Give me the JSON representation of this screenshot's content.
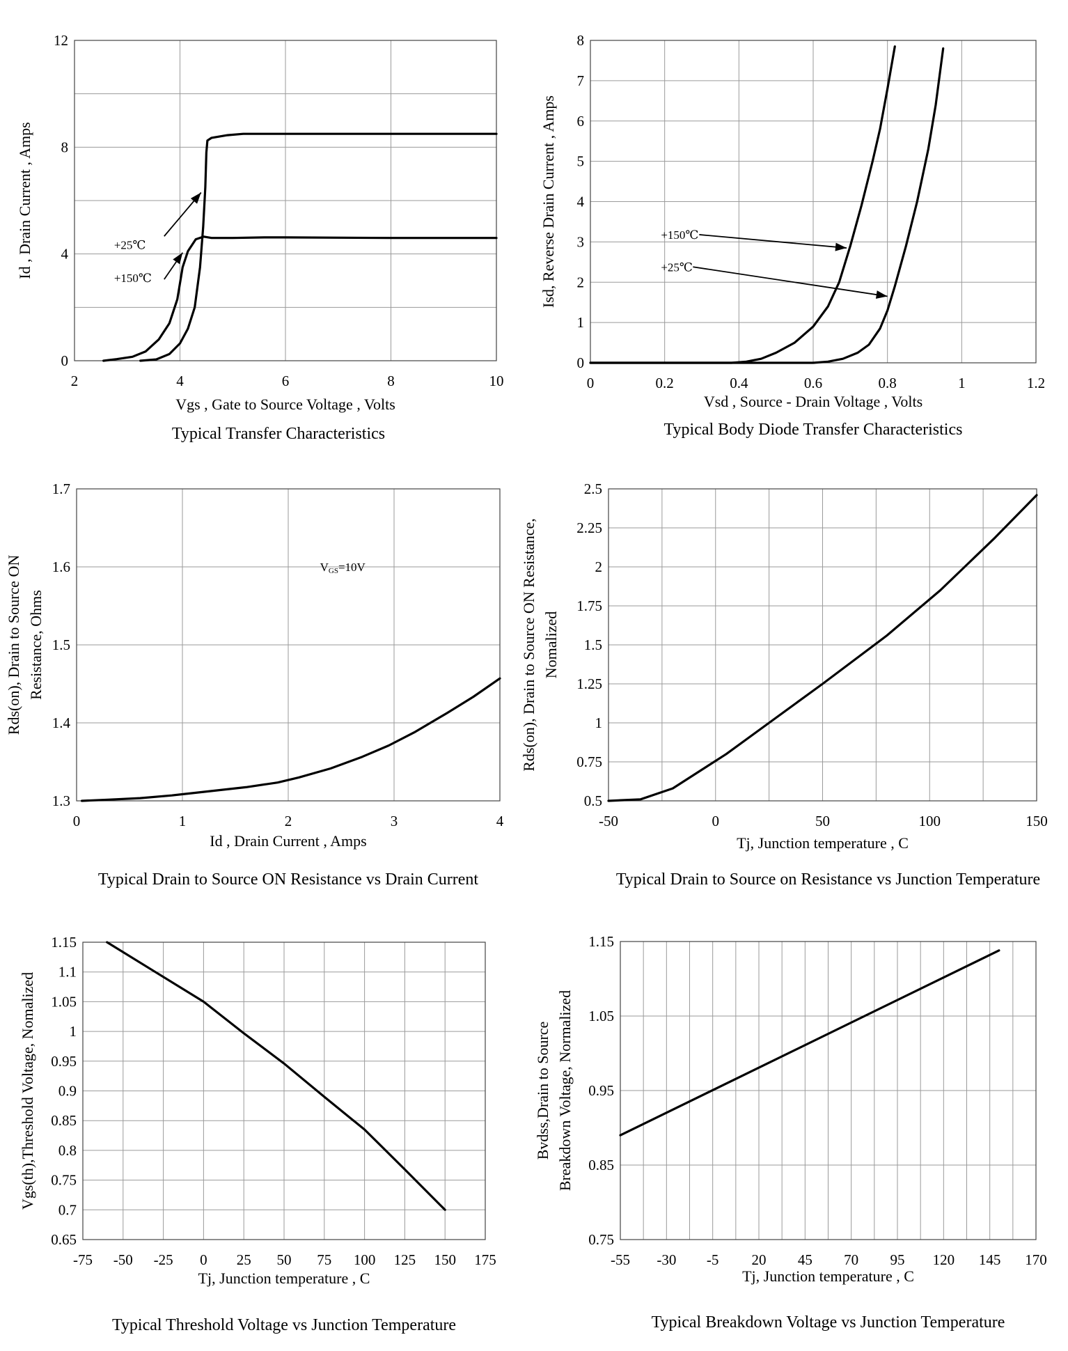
{
  "chart_data": [
    {
      "id": "transfer",
      "type": "line",
      "title": "Typical Transfer Characteristics",
      "xlabel": "Vgs , Gate to Source Voltage , Volts",
      "ylabel": "Id , Drain Current , Amps",
      "xlim": [
        2,
        10
      ],
      "ylim": [
        0,
        12
      ],
      "xticks": [
        2,
        4,
        6,
        8,
        10
      ],
      "xtick_labels": [
        "2",
        "4",
        "6",
        "8",
        "10"
      ],
      "yticks": [
        0,
        4,
        8,
        12
      ],
      "ytick_labels": [
        "0",
        "4",
        "8",
        "12"
      ],
      "xgrid": [
        2,
        4,
        6,
        8,
        10
      ],
      "ygrid": [
        0,
        2,
        4,
        6,
        8,
        10,
        12
      ],
      "series": [
        {
          "name": "+25℃",
          "points": [
            [
              3.25,
              0
            ],
            [
              3.55,
              0.05
            ],
            [
              3.8,
              0.25
            ],
            [
              4.0,
              0.65
            ],
            [
              4.15,
              1.2
            ],
            [
              4.28,
              2.0
            ],
            [
              4.38,
              3.5
            ],
            [
              4.44,
              5.0
            ],
            [
              4.48,
              6.5
            ],
            [
              4.5,
              7.8
            ],
            [
              4.52,
              8.25
            ],
            [
              4.6,
              8.35
            ],
            [
              4.9,
              8.45
            ],
            [
              5.2,
              8.5
            ],
            [
              5.6,
              8.5
            ],
            [
              6,
              8.5
            ],
            [
              10,
              8.5
            ]
          ]
        },
        {
          "name": "+150℃",
          "points": [
            [
              2.55,
              0
            ],
            [
              2.8,
              0.06
            ],
            [
              3.1,
              0.15
            ],
            [
              3.35,
              0.35
            ],
            [
              3.6,
              0.8
            ],
            [
              3.8,
              1.4
            ],
            [
              3.95,
              2.3
            ],
            [
              4.05,
              3.5
            ],
            [
              4.15,
              4.1
            ],
            [
              4.3,
              4.55
            ],
            [
              4.45,
              4.65
            ],
            [
              4.6,
              4.6
            ],
            [
              5.0,
              4.6
            ],
            [
              5.6,
              4.62
            ],
            [
              6,
              4.62
            ],
            [
              8,
              4.6
            ],
            [
              10,
              4.6
            ]
          ]
        }
      ],
      "annotations": [
        {
          "text": "+25℃",
          "at": [
            2.75,
            4.35
          ],
          "arrow_to": [
            4.4,
            6.3
          ]
        },
        {
          "text": "+150℃",
          "at": [
            2.75,
            3.1
          ],
          "arrow_to": [
            4.05,
            4.05
          ]
        }
      ]
    },
    {
      "id": "body-diode",
      "type": "line",
      "title": "Typical Body Diode Transfer Characteristics",
      "xlabel": "Vsd , Source - Drain Voltage , Volts",
      "ylabel": "Isd, Reverse Drain Current , Amps",
      "xlim": [
        0,
        1.2
      ],
      "ylim": [
        0,
        8
      ],
      "xticks": [
        0,
        0.2,
        0.4,
        0.6,
        0.8,
        1,
        1.2
      ],
      "xtick_labels": [
        "0",
        "0.2",
        "0.4",
        "0.6",
        "0.8",
        "1",
        "1.2"
      ],
      "yticks": [
        0,
        1,
        2,
        3,
        4,
        5,
        6,
        7,
        8
      ],
      "ytick_labels": [
        "0",
        "1",
        "2",
        "3",
        "4",
        "5",
        "6",
        "7",
        "8"
      ],
      "xgrid": [
        0,
        0.2,
        0.4,
        0.6,
        0.8,
        1,
        1.2
      ],
      "ygrid": [
        0,
        1,
        2,
        3,
        4,
        5,
        6,
        7,
        8
      ],
      "series": [
        {
          "name": "+150℃",
          "points": [
            [
              0,
              0
            ],
            [
              0.38,
              0
            ],
            [
              0.42,
              0.03
            ],
            [
              0.46,
              0.1
            ],
            [
              0.5,
              0.25
            ],
            [
              0.55,
              0.5
            ],
            [
              0.6,
              0.9
            ],
            [
              0.64,
              1.4
            ],
            [
              0.67,
              2.0
            ],
            [
              0.7,
              2.9
            ],
            [
              0.73,
              3.9
            ],
            [
              0.76,
              5.0
            ],
            [
              0.78,
              5.8
            ],
            [
              0.8,
              6.8
            ],
            [
              0.82,
              7.85
            ]
          ]
        },
        {
          "name": "+25℃",
          "points": [
            [
              0,
              0
            ],
            [
              0.6,
              0
            ],
            [
              0.64,
              0.03
            ],
            [
              0.68,
              0.1
            ],
            [
              0.72,
              0.25
            ],
            [
              0.75,
              0.45
            ],
            [
              0.78,
              0.85
            ],
            [
              0.8,
              1.3
            ],
            [
              0.82,
              1.9
            ],
            [
              0.85,
              2.9
            ],
            [
              0.88,
              4.0
            ],
            [
              0.91,
              5.3
            ],
            [
              0.93,
              6.4
            ],
            [
              0.95,
              7.8
            ]
          ]
        }
      ],
      "annotations": [
        {
          "text": "+150℃",
          "at": [
            0.19,
            3.18
          ],
          "arrow_to": [
            0.69,
            2.85
          ]
        },
        {
          "text": "+25℃",
          "at": [
            0.19,
            2.38
          ],
          "arrow_to": [
            0.8,
            1.65
          ]
        }
      ]
    },
    {
      "id": "rds-vs-id",
      "type": "line",
      "title": "Typical Drain to Source ON Resistance vs Drain Current",
      "xlabel": "Id , Drain Current , Amps",
      "ylabel": "Rds(on), Drain to Source ON Resistance, Ohms",
      "ylabel_lines": [
        "Rds(on), Drain to Source ON",
        "Resistance, Ohms"
      ],
      "xlim": [
        0,
        4
      ],
      "ylim": [
        1.3,
        1.7
      ],
      "xticks": [
        0,
        1,
        2,
        3,
        4
      ],
      "xtick_labels": [
        "0",
        "1",
        "2",
        "3",
        "4"
      ],
      "yticks": [
        1.3,
        1.4,
        1.5,
        1.6,
        1.7
      ],
      "ytick_labels": [
        "1.3",
        "1.4",
        "1.5",
        "1.6",
        "1.7"
      ],
      "xgrid": [
        0,
        1,
        2,
        3,
        4
      ],
      "ygrid": [
        1.3,
        1.4,
        1.5,
        1.6,
        1.7
      ],
      "series": [
        {
          "name": "VGS=10V",
          "points": [
            [
              0.05,
              1.3
            ],
            [
              0.3,
              1.3015
            ],
            [
              0.6,
              1.3035
            ],
            [
              0.9,
              1.307
            ],
            [
              1.2,
              1.3115
            ],
            [
              1.6,
              1.3175
            ],
            [
              1.9,
              1.3235
            ],
            [
              2.1,
              1.33
            ],
            [
              2.4,
              1.3415
            ],
            [
              2.7,
              1.3565
            ],
            [
              2.95,
              1.371
            ],
            [
              3.2,
              1.3885
            ],
            [
              3.5,
              1.4125
            ],
            [
              3.75,
              1.4335
            ],
            [
              4.0,
              1.457
            ]
          ]
        }
      ],
      "annotations": [
        {
          "text_main": "V",
          "text_sub": "GS",
          "text_tail": "=10V",
          "at": [
            2.3,
            1.6
          ]
        }
      ]
    },
    {
      "id": "rds-vs-tj",
      "type": "line",
      "title": "Typical Drain to Source on Resistance vs Junction Temperature",
      "xlabel": "Tj, Junction temperature , C",
      "ylabel": "Rds(on), Drain to Source ON Resistance, Nomalized",
      "ylabel_lines": [
        "Rds(on), Drain to Source ON  Resistance,",
        "Nomalized"
      ],
      "xlim": [
        -50,
        150
      ],
      "ylim": [
        0.5,
        2.5
      ],
      "xticks": [
        -50,
        0,
        50,
        100,
        150
      ],
      "xtick_labels": [
        "-50",
        "0",
        "50",
        "100",
        "150"
      ],
      "yticks": [
        0.5,
        0.75,
        1,
        1.25,
        1.5,
        1.75,
        2,
        2.25,
        2.5
      ],
      "ytick_labels": [
        "0.5",
        "0.75",
        "1",
        "1.25",
        "1.5",
        "1.75",
        "2",
        "2.25",
        "2.5"
      ],
      "xgrid": [
        -50,
        -25,
        0,
        25,
        50,
        75,
        100,
        125,
        150
      ],
      "ygrid": [
        0.5,
        0.75,
        1,
        1.25,
        1.5,
        1.75,
        2,
        2.25,
        2.5
      ],
      "series": [
        {
          "name": "Rds(on)",
          "points": [
            [
              -50,
              0.5
            ],
            [
              -35,
              0.51
            ],
            [
              -20,
              0.58
            ],
            [
              5,
              0.8
            ],
            [
              25,
              1.0
            ],
            [
              50,
              1.25
            ],
            [
              80,
              1.56
            ],
            [
              105,
              1.85
            ],
            [
              130,
              2.18
            ],
            [
              150,
              2.46
            ]
          ]
        }
      ]
    },
    {
      "id": "vth-vs-tj",
      "type": "line",
      "title": "Typical Threshold Voltage vs Junction Temperature",
      "xlabel": "Tj, Junction temperature , C",
      "ylabel": "Vgs(th),Threshold Voltage, Nomalized",
      "xlim": [
        -75,
        175
      ],
      "ylim": [
        0.65,
        1.15
      ],
      "xticks": [
        -75,
        -50,
        -25,
        0,
        25,
        50,
        75,
        100,
        125,
        150,
        175
      ],
      "xtick_labels": [
        "-75",
        "-50",
        "-25",
        "0",
        "25",
        "50",
        "75",
        "100",
        "125",
        "150",
        "175"
      ],
      "yticks": [
        0.65,
        0.7,
        0.75,
        0.8,
        0.85,
        0.9,
        0.95,
        1,
        1.05,
        1.1,
        1.15
      ],
      "ytick_labels": [
        "0.65",
        "0.7",
        "0.75",
        "0.8",
        "0.85",
        "0.9",
        "0.95",
        "1",
        "1.05",
        "1.1",
        "1.15"
      ],
      "xgrid": [
        -75,
        -50,
        -25,
        0,
        25,
        50,
        75,
        100,
        125,
        150,
        175
      ],
      "ygrid": [
        0.65,
        0.7,
        0.75,
        0.8,
        0.85,
        0.9,
        0.95,
        1,
        1.05,
        1.1,
        1.15
      ],
      "series": [
        {
          "name": "Vgs(th)",
          "points": [
            [
              -60,
              1.15
            ],
            [
              -30,
              1.1
            ],
            [
              0,
              1.05
            ],
            [
              25,
              0.997
            ],
            [
              50,
              0.946
            ],
            [
              75,
              0.89
            ],
            [
              100,
              0.835
            ],
            [
              125,
              0.768
            ],
            [
              150,
              0.7
            ]
          ]
        }
      ]
    },
    {
      "id": "bvdss-vs-tj",
      "type": "line",
      "title": "Typical Breakdown Voltage vs Junction Temperature",
      "xlabel": "Tj, Junction temperature , C",
      "ylabel": "Bvdss,Drain to Source Breakdown Voltage, Normalized",
      "ylabel_lines": [
        "Bvdss,Drain to Source",
        "Breakdown Voltage, Normalized"
      ],
      "xlim": [
        -55,
        170
      ],
      "ylim": [
        0.75,
        1.15
      ],
      "xticks": [
        -55,
        -30,
        -5,
        20,
        45,
        70,
        95,
        120,
        145,
        170
      ],
      "xtick_labels": [
        "-55",
        "-30",
        "-5",
        "20",
        "45",
        "70",
        "95",
        "120",
        "145",
        "170"
      ],
      "yticks": [
        0.75,
        0.85,
        0.95,
        1.05,
        1.15
      ],
      "ytick_labels": [
        "0.75",
        "0.85",
        "0.95",
        "1.05",
        "1.15"
      ],
      "xgrid": [
        -55,
        -42.5,
        -30,
        -17.5,
        -5,
        7.5,
        20,
        32.5,
        45,
        57.5,
        70,
        82.5,
        95,
        107.5,
        120,
        132.5,
        145,
        157.5,
        170
      ],
      "ygrid": [
        0.75,
        0.85,
        0.95,
        1.05,
        1.15
      ],
      "series": [
        {
          "name": "Bvdss",
          "points": [
            [
              -55,
              0.89
            ],
            [
              150,
              1.138
            ]
          ]
        }
      ]
    }
  ]
}
